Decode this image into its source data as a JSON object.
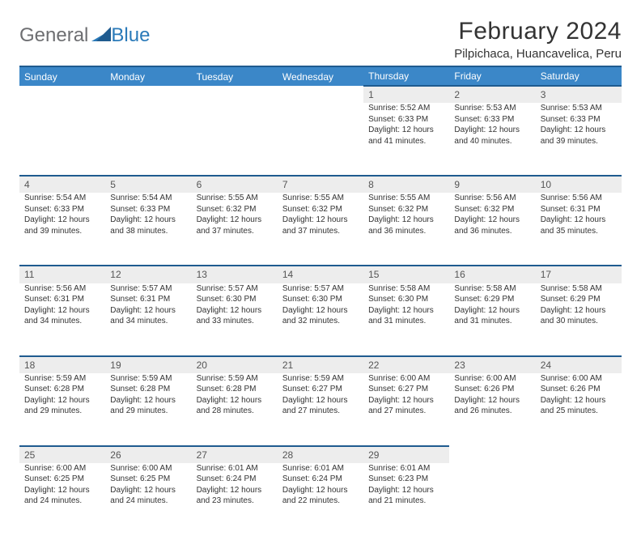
{
  "brand": {
    "part1": "General",
    "part2": "Blue"
  },
  "title": "February 2024",
  "location": "Pilpichaca, Huancavelica, Peru",
  "colors": {
    "header_bg": "#3b87c8",
    "header_border": "#1f5b8f",
    "daynum_bg": "#ededed",
    "text": "#333333",
    "logo_gray": "#6d6e71",
    "logo_blue": "#2a7ab9",
    "page_bg": "#ffffff"
  },
  "day_names": [
    "Sunday",
    "Monday",
    "Tuesday",
    "Wednesday",
    "Thursday",
    "Friday",
    "Saturday"
  ],
  "weeks": [
    [
      {
        "day": "",
        "lines": []
      },
      {
        "day": "",
        "lines": []
      },
      {
        "day": "",
        "lines": []
      },
      {
        "day": "",
        "lines": []
      },
      {
        "day": "1",
        "lines": [
          "Sunrise: 5:52 AM",
          "Sunset: 6:33 PM",
          "Daylight: 12 hours",
          "and 41 minutes."
        ]
      },
      {
        "day": "2",
        "lines": [
          "Sunrise: 5:53 AM",
          "Sunset: 6:33 PM",
          "Daylight: 12 hours",
          "and 40 minutes."
        ]
      },
      {
        "day": "3",
        "lines": [
          "Sunrise: 5:53 AM",
          "Sunset: 6:33 PM",
          "Daylight: 12 hours",
          "and 39 minutes."
        ]
      }
    ],
    [
      {
        "day": "4",
        "lines": [
          "Sunrise: 5:54 AM",
          "Sunset: 6:33 PM",
          "Daylight: 12 hours",
          "and 39 minutes."
        ]
      },
      {
        "day": "5",
        "lines": [
          "Sunrise: 5:54 AM",
          "Sunset: 6:33 PM",
          "Daylight: 12 hours",
          "and 38 minutes."
        ]
      },
      {
        "day": "6",
        "lines": [
          "Sunrise: 5:55 AM",
          "Sunset: 6:32 PM",
          "Daylight: 12 hours",
          "and 37 minutes."
        ]
      },
      {
        "day": "7",
        "lines": [
          "Sunrise: 5:55 AM",
          "Sunset: 6:32 PM",
          "Daylight: 12 hours",
          "and 37 minutes."
        ]
      },
      {
        "day": "8",
        "lines": [
          "Sunrise: 5:55 AM",
          "Sunset: 6:32 PM",
          "Daylight: 12 hours",
          "and 36 minutes."
        ]
      },
      {
        "day": "9",
        "lines": [
          "Sunrise: 5:56 AM",
          "Sunset: 6:32 PM",
          "Daylight: 12 hours",
          "and 36 minutes."
        ]
      },
      {
        "day": "10",
        "lines": [
          "Sunrise: 5:56 AM",
          "Sunset: 6:31 PM",
          "Daylight: 12 hours",
          "and 35 minutes."
        ]
      }
    ],
    [
      {
        "day": "11",
        "lines": [
          "Sunrise: 5:56 AM",
          "Sunset: 6:31 PM",
          "Daylight: 12 hours",
          "and 34 minutes."
        ]
      },
      {
        "day": "12",
        "lines": [
          "Sunrise: 5:57 AM",
          "Sunset: 6:31 PM",
          "Daylight: 12 hours",
          "and 34 minutes."
        ]
      },
      {
        "day": "13",
        "lines": [
          "Sunrise: 5:57 AM",
          "Sunset: 6:30 PM",
          "Daylight: 12 hours",
          "and 33 minutes."
        ]
      },
      {
        "day": "14",
        "lines": [
          "Sunrise: 5:57 AM",
          "Sunset: 6:30 PM",
          "Daylight: 12 hours",
          "and 32 minutes."
        ]
      },
      {
        "day": "15",
        "lines": [
          "Sunrise: 5:58 AM",
          "Sunset: 6:30 PM",
          "Daylight: 12 hours",
          "and 31 minutes."
        ]
      },
      {
        "day": "16",
        "lines": [
          "Sunrise: 5:58 AM",
          "Sunset: 6:29 PM",
          "Daylight: 12 hours",
          "and 31 minutes."
        ]
      },
      {
        "day": "17",
        "lines": [
          "Sunrise: 5:58 AM",
          "Sunset: 6:29 PM",
          "Daylight: 12 hours",
          "and 30 minutes."
        ]
      }
    ],
    [
      {
        "day": "18",
        "lines": [
          "Sunrise: 5:59 AM",
          "Sunset: 6:28 PM",
          "Daylight: 12 hours",
          "and 29 minutes."
        ]
      },
      {
        "day": "19",
        "lines": [
          "Sunrise: 5:59 AM",
          "Sunset: 6:28 PM",
          "Daylight: 12 hours",
          "and 29 minutes."
        ]
      },
      {
        "day": "20",
        "lines": [
          "Sunrise: 5:59 AM",
          "Sunset: 6:28 PM",
          "Daylight: 12 hours",
          "and 28 minutes."
        ]
      },
      {
        "day": "21",
        "lines": [
          "Sunrise: 5:59 AM",
          "Sunset: 6:27 PM",
          "Daylight: 12 hours",
          "and 27 minutes."
        ]
      },
      {
        "day": "22",
        "lines": [
          "Sunrise: 6:00 AM",
          "Sunset: 6:27 PM",
          "Daylight: 12 hours",
          "and 27 minutes."
        ]
      },
      {
        "day": "23",
        "lines": [
          "Sunrise: 6:00 AM",
          "Sunset: 6:26 PM",
          "Daylight: 12 hours",
          "and 26 minutes."
        ]
      },
      {
        "day": "24",
        "lines": [
          "Sunrise: 6:00 AM",
          "Sunset: 6:26 PM",
          "Daylight: 12 hours",
          "and 25 minutes."
        ]
      }
    ],
    [
      {
        "day": "25",
        "lines": [
          "Sunrise: 6:00 AM",
          "Sunset: 6:25 PM",
          "Daylight: 12 hours",
          "and 24 minutes."
        ]
      },
      {
        "day": "26",
        "lines": [
          "Sunrise: 6:00 AM",
          "Sunset: 6:25 PM",
          "Daylight: 12 hours",
          "and 24 minutes."
        ]
      },
      {
        "day": "27",
        "lines": [
          "Sunrise: 6:01 AM",
          "Sunset: 6:24 PM",
          "Daylight: 12 hours",
          "and 23 minutes."
        ]
      },
      {
        "day": "28",
        "lines": [
          "Sunrise: 6:01 AM",
          "Sunset: 6:24 PM",
          "Daylight: 12 hours",
          "and 22 minutes."
        ]
      },
      {
        "day": "29",
        "lines": [
          "Sunrise: 6:01 AM",
          "Sunset: 6:23 PM",
          "Daylight: 12 hours",
          "and 21 minutes."
        ]
      },
      {
        "day": "",
        "lines": []
      },
      {
        "day": "",
        "lines": []
      }
    ]
  ]
}
